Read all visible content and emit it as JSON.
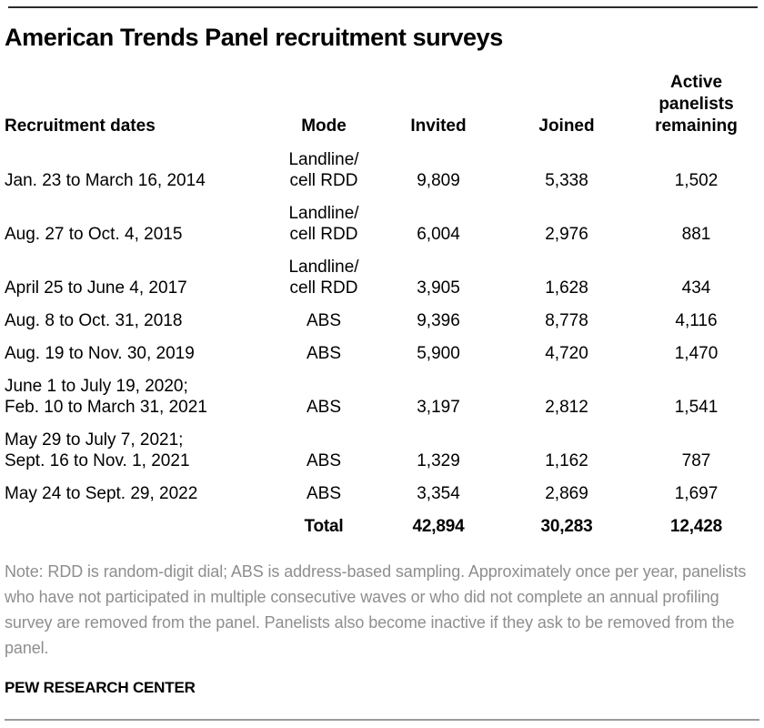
{
  "title": "American Trends Panel recruitment surveys",
  "table": {
    "headers": {
      "dates": "Recruitment dates",
      "mode": "Mode",
      "invited": "Invited",
      "joined": "Joined",
      "remaining": "Active\npanelists\nremaining"
    },
    "rows": [
      {
        "dates": "Jan. 23 to March 16, 2014",
        "mode": "Landline/\ncell RDD",
        "invited": "9,809",
        "joined": "5,338",
        "remaining": "1,502"
      },
      {
        "dates": "Aug. 27 to Oct. 4, 2015",
        "mode": "Landline/\ncell RDD",
        "invited": "6,004",
        "joined": "2,976",
        "remaining": "881"
      },
      {
        "dates": "April 25 to June 4, 2017",
        "mode": "Landline/\ncell RDD",
        "invited": "3,905",
        "joined": "1,628",
        "remaining": "434"
      },
      {
        "dates": "Aug. 8 to Oct. 31, 2018",
        "mode": "ABS",
        "invited": "9,396",
        "joined": "8,778",
        "remaining": "4,116"
      },
      {
        "dates": "Aug. 19 to Nov. 30, 2019",
        "mode": "ABS",
        "invited": "5,900",
        "joined": "4,720",
        "remaining": "1,470"
      },
      {
        "dates": "June 1 to July 19, 2020;\nFeb. 10 to March 31, 2021",
        "mode": "ABS",
        "invited": "3,197",
        "joined": "2,812",
        "remaining": "1,541"
      },
      {
        "dates": "May 29 to July 7, 2021;\nSept. 16 to Nov. 1, 2021",
        "mode": "ABS",
        "invited": "1,329",
        "joined": "1,162",
        "remaining": "787"
      },
      {
        "dates": "May 24 to Sept. 29, 2022",
        "mode": "ABS",
        "invited": "3,354",
        "joined": "2,869",
        "remaining": "1,697"
      }
    ],
    "total": {
      "label": "Total",
      "invited": "42,894",
      "joined": "30,283",
      "remaining": "12,428"
    }
  },
  "note": "Note: RDD is random-digit dial; ABS is address-based sampling. Approximately once per year, panelists who have not participated in multiple consecutive waves or who did not complete an annual profiling survey are removed from the panel. Panelists also become inactive if they ask to be removed from the panel.",
  "footer": "PEW RESEARCH CENTER",
  "colors": {
    "text": "#000000",
    "note_gray": "#8e8e8e",
    "rule_top": "#2b2b2b",
    "rule_bottom": "#9b9b9b"
  },
  "chart_data": {
    "type": "table",
    "title": "American Trends Panel recruitment surveys",
    "columns": [
      "Recruitment dates",
      "Mode",
      "Invited",
      "Joined",
      "Active panelists remaining"
    ],
    "rows": [
      [
        "Jan. 23 to March 16, 2014",
        "Landline/cell RDD",
        9809,
        5338,
        1502
      ],
      [
        "Aug. 27 to Oct. 4, 2015",
        "Landline/cell RDD",
        6004,
        2976,
        881
      ],
      [
        "April 25 to June 4, 2017",
        "Landline/cell RDD",
        3905,
        1628,
        434
      ],
      [
        "Aug. 8 to Oct. 31, 2018",
        "ABS",
        9396,
        8778,
        4116
      ],
      [
        "Aug. 19 to Nov. 30, 2019",
        "ABS",
        5900,
        4720,
        1470
      ],
      [
        "June 1 to July 19, 2020; Feb. 10 to March 31, 2021",
        "ABS",
        3197,
        2812,
        1541
      ],
      [
        "May 29 to July 7, 2021; Sept. 16 to Nov. 1, 2021",
        "ABS",
        1329,
        1162,
        787
      ],
      [
        "May 24 to Sept. 29, 2022",
        "ABS",
        3354,
        2869,
        1697
      ]
    ],
    "total_row": [
      "Total",
      42894,
      30283,
      12428
    ],
    "source": "PEW RESEARCH CENTER"
  }
}
